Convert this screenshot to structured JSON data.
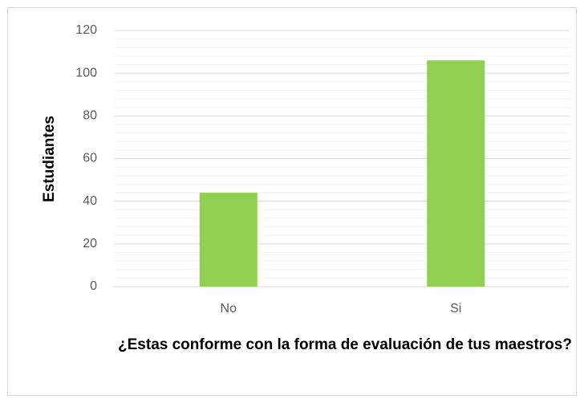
{
  "chart_data": {
    "type": "bar",
    "xlabel": "¿Estas conforme con la forma de evaluación de tus maestros?",
    "ylabel": "Estudiantes",
    "categories": [
      "No",
      "Si"
    ],
    "values": [
      44,
      106
    ],
    "color": "#92d050",
    "ylim": [
      0,
      120
    ],
    "yticks": [
      0,
      20,
      40,
      60,
      80,
      100,
      120
    ],
    "yminorticks": [
      4,
      8,
      12,
      16,
      24,
      28,
      32,
      36,
      44,
      48,
      52,
      56,
      64,
      68,
      72,
      76,
      84,
      88,
      92,
      96,
      104,
      108,
      112,
      116
    ],
    "grid": true
  }
}
